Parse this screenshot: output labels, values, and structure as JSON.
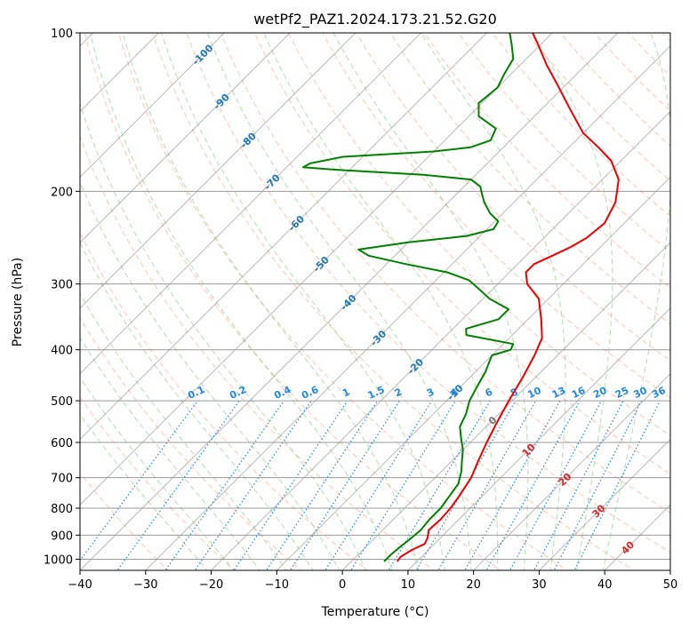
{
  "chart_data": {
    "type": "line",
    "subtype": "skew-t log-p",
    "title": "wetPf2_PAZ1.2024.173.21.52.G20",
    "xlabel": "Temperature (°C)",
    "ylabel": "Pressure (hPa)",
    "xlim": [
      -40,
      50
    ],
    "ylim": [
      1050,
      100
    ],
    "y_scale": "log",
    "grid": true,
    "x_ticks": [
      -40,
      -30,
      -20,
      -10,
      0,
      10,
      20,
      30,
      40,
      50
    ],
    "y_ticks": [
      100,
      200,
      300,
      400,
      500,
      600,
      700,
      800,
      900,
      1000
    ],
    "colors": {
      "temperature": "#ee0000",
      "dewpoint": "#008000",
      "dry_adiabat": "#ff8c66",
      "moist_adiabat": "#66bb66",
      "mixing_ratio": "#1e88e5",
      "isotherm": "#808080",
      "isotherm_label_cold": "#1f77b4",
      "isotherm_label_warm": "#d62728"
    },
    "isotherm_labels": [
      "-100",
      "-90",
      "-80",
      "-70",
      "-60",
      "-50",
      "-40",
      "-30",
      "-20",
      "-10",
      "0",
      "10",
      "20",
      "30",
      "40"
    ],
    "isotherm_label_values": [
      -100,
      -90,
      -80,
      -70,
      -60,
      -50,
      -40,
      -30,
      -20,
      -10,
      0,
      10,
      20,
      30,
      40
    ],
    "mixing_ratio_labels": [
      "0.1",
      "0.2",
      "0.4",
      "0.6",
      "1",
      "1.5",
      "2",
      "3",
      "4",
      "6",
      "8",
      "10",
      "13",
      "16",
      "20",
      "25",
      "30",
      "36"
    ],
    "mixing_ratio_values": [
      0.1,
      0.2,
      0.4,
      0.6,
      1,
      1.5,
      2,
      3,
      4,
      6,
      8,
      10,
      13,
      16,
      20,
      25,
      30,
      36
    ],
    "series": [
      {
        "name": "temperature",
        "points": [
          [
            1010,
            7.0
          ],
          [
            990,
            6.8
          ],
          [
            960,
            7.5
          ],
          [
            935,
            8.5
          ],
          [
            910,
            8.0
          ],
          [
            880,
            7.0
          ],
          [
            840,
            7.2
          ],
          [
            800,
            7.0
          ],
          [
            760,
            6.5
          ],
          [
            700,
            5.5
          ],
          [
            650,
            4.0
          ],
          [
            600,
            2.5
          ],
          [
            550,
            1.0
          ],
          [
            500,
            -0.5
          ],
          [
            450,
            -2.0
          ],
          [
            410,
            -3.5
          ],
          [
            380,
            -5.0
          ],
          [
            350,
            -8.0
          ],
          [
            320,
            -11.5
          ],
          [
            300,
            -15.5
          ],
          [
            285,
            -17.5
          ],
          [
            275,
            -17.5
          ],
          [
            265,
            -16.0
          ],
          [
            255,
            -14.5
          ],
          [
            245,
            -13.5
          ],
          [
            230,
            -13.0
          ],
          [
            210,
            -14.5
          ],
          [
            190,
            -17.5
          ],
          [
            175,
            -21.5
          ],
          [
            165,
            -25.5
          ],
          [
            155,
            -30.0
          ],
          [
            140,
            -35.5
          ],
          [
            125,
            -41.5
          ],
          [
            115,
            -46.0
          ],
          [
            105,
            -50.5
          ],
          [
            100,
            -53.0
          ]
        ]
      },
      {
        "name": "dewpoint",
        "points": [
          [
            1010,
            5.0
          ],
          [
            980,
            5.0
          ],
          [
            950,
            5.2
          ],
          [
            920,
            5.5
          ],
          [
            880,
            5.8
          ],
          [
            840,
            5.5
          ],
          [
            800,
            5.5
          ],
          [
            760,
            5.0
          ],
          [
            720,
            4.5
          ],
          [
            680,
            3.0
          ],
          [
            650,
            1.5
          ],
          [
            620,
            0.0
          ],
          [
            590,
            -2.0
          ],
          [
            560,
            -4.0
          ],
          [
            530,
            -5.0
          ],
          [
            500,
            -6.5
          ],
          [
            470,
            -7.5
          ],
          [
            440,
            -8.5
          ],
          [
            420,
            -9.5
          ],
          [
            410,
            -10.0
          ],
          [
            400,
            -8.0
          ],
          [
            390,
            -8.5
          ],
          [
            375,
            -17.0
          ],
          [
            365,
            -18.0
          ],
          [
            350,
            -14.5
          ],
          [
            335,
            -14.5
          ],
          [
            320,
            -19.0
          ],
          [
            305,
            -22.5
          ],
          [
            295,
            -25.0
          ],
          [
            285,
            -29.5
          ],
          [
            275,
            -37.0
          ],
          [
            265,
            -44.0
          ],
          [
            258,
            -46.5
          ],
          [
            250,
            -40.0
          ],
          [
            243,
            -32.0
          ],
          [
            236,
            -29.0
          ],
          [
            228,
            -29.5
          ],
          [
            220,
            -32.0
          ],
          [
            210,
            -34.5
          ],
          [
            203,
            -36.0
          ],
          [
            196,
            -37.5
          ],
          [
            190,
            -40.0
          ],
          [
            186,
            -48.0
          ],
          [
            182,
            -62.0
          ],
          [
            180,
            -67.5
          ],
          [
            177,
            -67.0
          ],
          [
            172,
            -63.0
          ],
          [
            168,
            -50.0
          ],
          [
            165,
            -45.0
          ],
          [
            160,
            -43.0
          ],
          [
            152,
            -44.0
          ],
          [
            144,
            -48.5
          ],
          [
            136,
            -50.5
          ],
          [
            127,
            -50.0
          ],
          [
            120,
            -51.0
          ],
          [
            112,
            -52.0
          ],
          [
            105,
            -54.5
          ],
          [
            100,
            -56.5
          ]
        ]
      }
    ]
  }
}
